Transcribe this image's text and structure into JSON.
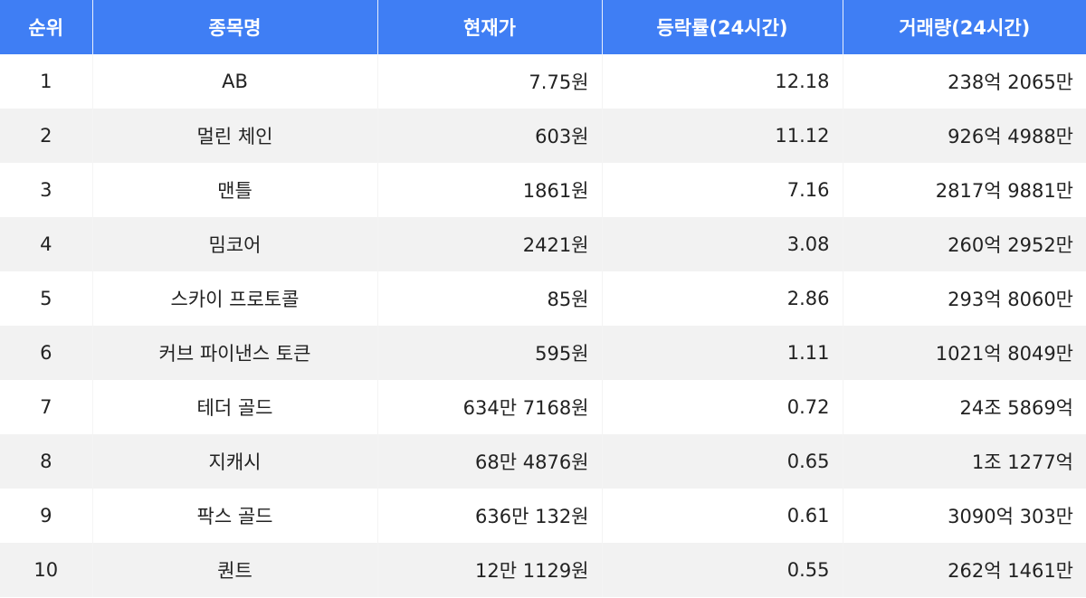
{
  "header_color": "#3f7ef4",
  "columns": [
    "순위",
    "종목명",
    "현재가",
    "등락률(24시간)",
    "거래량(24시간)"
  ],
  "rows": [
    {
      "rank": "1",
      "name": "AB",
      "price": "7.75원",
      "change": "12.18",
      "volume": "238억 2065만"
    },
    {
      "rank": "2",
      "name": "멀린 체인",
      "price": "603원",
      "change": "11.12",
      "volume": "926억 4988만"
    },
    {
      "rank": "3",
      "name": "맨틀",
      "price": "1861원",
      "change": "7.16",
      "volume": "2817억 9881만"
    },
    {
      "rank": "4",
      "name": "밈코어",
      "price": "2421원",
      "change": "3.08",
      "volume": "260억 2952만"
    },
    {
      "rank": "5",
      "name": "스카이 프로토콜",
      "price": "85원",
      "change": "2.86",
      "volume": "293억 8060만"
    },
    {
      "rank": "6",
      "name": "커브 파이낸스 토큰",
      "price": "595원",
      "change": "1.11",
      "volume": "1021억 8049만"
    },
    {
      "rank": "7",
      "name": "테더 골드",
      "price": "634만 7168원",
      "change": "0.72",
      "volume": "24조 5869억"
    },
    {
      "rank": "8",
      "name": "지캐시",
      "price": "68만 4876원",
      "change": "0.65",
      "volume": "1조 1277억"
    },
    {
      "rank": "9",
      "name": "팍스 골드",
      "price": "636만 132원",
      "change": "0.61",
      "volume": "3090억 303만"
    },
    {
      "rank": "10",
      "name": "퀀트",
      "price": "12만 1129원",
      "change": "0.55",
      "volume": "262억 1461만"
    }
  ]
}
